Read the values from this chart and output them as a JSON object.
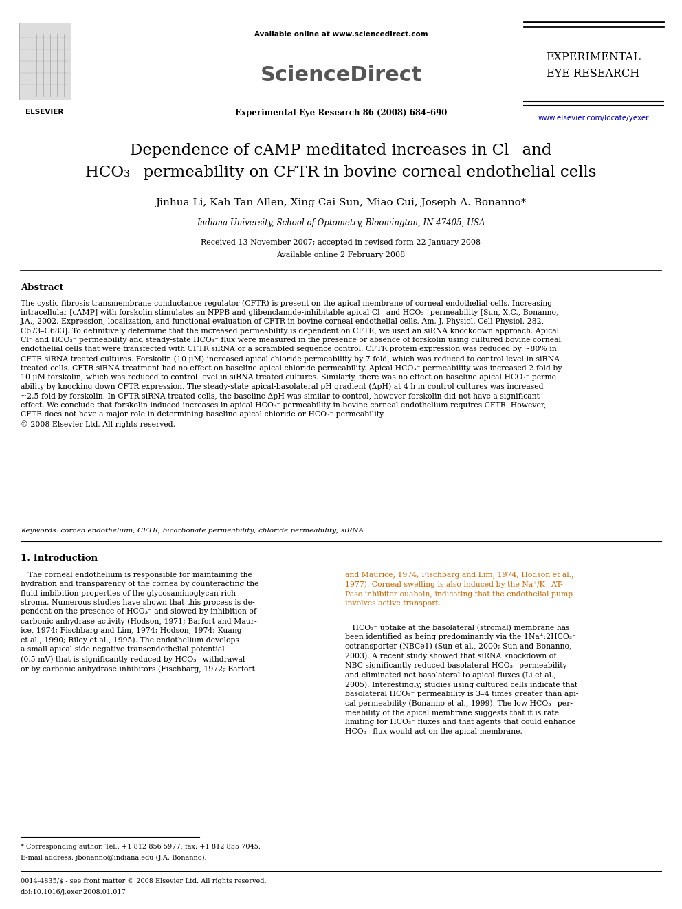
{
  "background_color": "#ffffff",
  "page_width": 9.92,
  "page_height": 13.23,
  "dpi": 100,
  "header": {
    "available_online": "Available online at www.sciencedirect.com",
    "journal_name": "ScienceDirect",
    "journal_ref": "Experimental Eye Research 86 (2008) 684–690",
    "journal_right_top": "EXPERIMENTAL\nEYE RESEARCH",
    "journal_url": "www.elsevier.com/locate/yexer"
  },
  "title_line1": "Dependence of cAMP meditated increases in Cl⁻ and",
  "title_line2": "HCO₃⁻ permeability on CFTR in bovine corneal endothelial cells",
  "authors": "Jinhua Li, Kah Tan Allen, Xing Cai Sun, Miao Cui, Joseph A. Bonanno*",
  "affiliation": "Indiana University, School of Optometry, Bloomington, IN 47405, USA",
  "received": "Received 13 November 2007; accepted in revised form 22 January 2008",
  "available": "Available online 2 February 2008",
  "abstract_title": "Abstract",
  "abstract_text": "The cystic fibrosis transmembrane conductance regulator (CFTR) is present on the apical membrane of corneal endothelial cells. Increasing\nintracellular [cAMP] with forskolin stimulates an NPPB and glibenclamide-inhibitable apical Cl⁻ and HCO₃⁻ permeability [Sun, X.C., Bonanno,\nJ.A., 2002. Expression, localization, and functional evaluation of CFTR in bovine corneal endothelial cells. Am. J. Physiol. Cell Physiol. 282,\nC673–C683]. To definitively determine that the increased permeability is dependent on CFTR, we used an siRNA knockdown approach. Apical\nCl⁻ and HCO₃⁻ permeability and steady-state HCO₃⁻ flux were measured in the presence or absence of forskolin using cultured bovine corneal\nendothelial cells that were transfected with CFTR siRNA or a scrambled sequence control. CFTR protein expression was reduced by ~80% in\nCFTR siRNA treated cultures. Forskolin (10 μM) increased apical chloride permeability by 7-fold, which was reduced to control level in siRNA\ntreated cells. CFTR siRNA treatment had no effect on baseline apical chloride permeability. Apical HCO₃⁻ permeability was increased 2-fold by\n10 μM forskolin, which was reduced to control level in siRNA treated cultures. Similarly, there was no effect on baseline apical HCO₃⁻ perme-\nability by knocking down CFTR expression. The steady-state apical-basolateral pH gradient (ΔpH) at 4 h in control cultures was increased\n~2.5-fold by forskolin. In CFTR siRNA treated cells, the baseline ΔpH was similar to control, however forskolin did not have a significant\neffect. We conclude that forskolin induced increases in apical HCO₃⁻ permeability in bovine corneal endothelium requires CFTR. However,\nCFTR does not have a major role in determining baseline apical chloride or HCO₃⁻ permeability.\n© 2008 Elsevier Ltd. All rights reserved.",
  "keywords": "Keywords: cornea endothelium; CFTR; bicarbonate permeability; chloride permeability; siRNA",
  "section1_title": "1. Introduction",
  "section1_col1_para1": "   The corneal endothelium is responsible for maintaining the\nhydration and transparency of the cornea by counteracting the\nfluid imbibition properties of the glycosaminoglycan rich\nstroma. Numerous studies have shown that this process is de-\npendent on the presence of HCO₃⁻ and slowed by inhibition of\ncarbonic anhydrase activity (Hodson, 1971; Barfort and Maur-\nice, 1974; Fischbarg and Lim, 1974; Hodson, 1974; Kuang\net al., 1990; Riley et al., 1995). The endothelium develops\na small apical side negative transendothelial potential\n(0.5 mV) that is significantly reduced by HCO₃⁻ withdrawal\nor by carbonic anhydrase inhibitors (Fischbarg, 1972; Barfort",
  "section1_col2_para1": "and Maurice, 1974; Fischbarg and Lim, 1974; Hodson et al.,\n1977). Corneal swelling is also induced by the Na⁺/K⁺ AT-\nPase inhibitor ouabain, indicating that the endothelial pump\ninvolves active transport.",
  "section1_col2_para2": "   HCO₃⁻ uptake at the basolateral (stromal) membrane has\nbeen identified as being predominantly via the 1Na⁺:2HCO₃⁻\ncotransporter (NBCe1) (Sun et al., 2000; Sun and Bonanno,\n2003). A recent study showed that siRNA knockdown of\nNBC significantly reduced basolateral HCO₃⁻ permeability\nand eliminated net basolateral to apical fluxes (Li et al.,\n2005). Interestingly, studies using cultured cells indicate that\nbasolateral HCO₃⁻ permeability is 3–4 times greater than api-\ncal permeability (Bonanno et al., 1999). The low HCO₃⁻ per-\nmeability of the apical membrane suggests that it is rate\nlimiting for HCO₃⁻ fluxes and that agents that could enhance\nHCO₃⁻ flux would act on the apical membrane.",
  "footnote_star": "* Corresponding author. Tel.: +1 812 856 5977; fax: +1 812 855 7045.",
  "footnote_email": "E-mail address: jbonanno@indiana.edu (J.A. Bonanno).",
  "footer_left": "0014-4835/$ - see front matter © 2008 Elsevier Ltd. All rights reserved.",
  "footer_doi": "doi:10.1016/j.exer.2008.01.017",
  "elsevier_text": "ELSEVIER",
  "col1_orange_refs": "and Maurice, 1974; Fischbarg and Lim, 1974; Hodson et al.,",
  "col2_orange_line1": "and Maurice, 1974; Fischbarg and Lim, 1974; Hodson et al.,",
  "orange_color": "#cc6600"
}
